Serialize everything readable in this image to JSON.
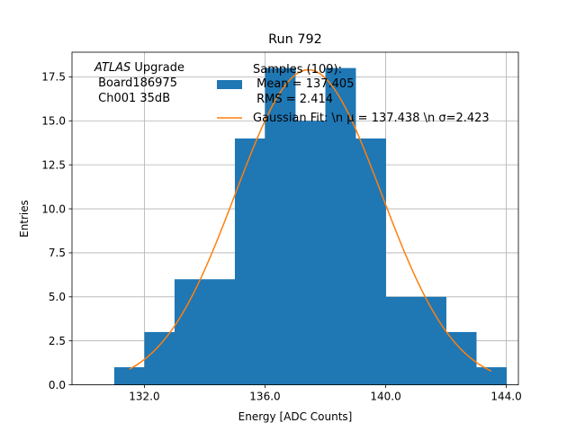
{
  "chart_data": {
    "type": "bar",
    "title": "Run 792",
    "xlabel": "Energy [ADC Counts]",
    "ylabel": "Entries",
    "xlim": [
      129.6,
      144.4
    ],
    "ylim": [
      0,
      18.9
    ],
    "grid": true,
    "x_ticks": [
      132,
      136,
      140,
      144
    ],
    "x_tick_labels": [
      "132.0",
      "136.0",
      "140.0",
      "144.0"
    ],
    "y_ticks": [
      0,
      2.5,
      5,
      7.5,
      10,
      12.5,
      15,
      17.5
    ],
    "y_tick_labels": [
      "0.0",
      "2.5",
      "5.0",
      "7.5",
      "10.0",
      "12.5",
      "15.0",
      "17.5"
    ],
    "bins": [
      {
        "x0": 131,
        "x1": 132,
        "count": 1
      },
      {
        "x0": 132,
        "x1": 133,
        "count": 3
      },
      {
        "x0": 133,
        "x1": 134,
        "count": 6
      },
      {
        "x0": 134,
        "x1": 135,
        "count": 6
      },
      {
        "x0": 135,
        "x1": 136,
        "count": 14
      },
      {
        "x0": 136,
        "x1": 137,
        "count": 18
      },
      {
        "x0": 137,
        "x1": 138,
        "count": 15
      },
      {
        "x0": 138,
        "x1": 139,
        "count": 18
      },
      {
        "x0": 139,
        "x1": 140,
        "count": 14
      },
      {
        "x0": 140,
        "x1": 141,
        "count": 5
      },
      {
        "x0": 141,
        "x1": 142,
        "count": 5
      },
      {
        "x0": 142,
        "x1": 143,
        "count": 3
      },
      {
        "x0": 143,
        "x1": 144,
        "count": 1
      }
    ],
    "fit": {
      "mu": 137.438,
      "sigma": 2.423,
      "amplitude": 17.9,
      "x_range": [
        131.5,
        143.5
      ]
    },
    "legend": {
      "placement": "top-right",
      "entries": [
        {
          "label_lines": [
            "Samples (109):",
            " Mean = 137.405",
            " RMS = 2.414"
          ],
          "kind": "patch",
          "color": "#1f77b4"
        },
        {
          "label_lines": [
            "Gaussian Fit: \\n μ = 137.438 \\n σ=2.423"
          ],
          "kind": "line",
          "color": "#ff7f0e"
        }
      ]
    },
    "annotation": {
      "italic": "ATLAS",
      "rest": " Upgrade",
      "lines": [
        " Board186975",
        " Ch001 35dB"
      ]
    }
  }
}
